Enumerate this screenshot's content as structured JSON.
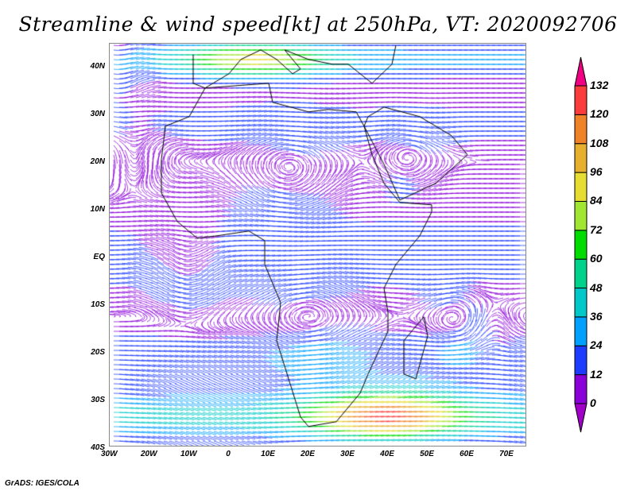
{
  "title": "Streamline & wind speed[kt] at 250hPa, VT: 2020092706",
  "x_axis": [
    "30W",
    "20W",
    "10W",
    "0",
    "10E",
    "20E",
    "30E",
    "40E",
    "50E",
    "60E",
    "70E"
  ],
  "y_axis": [
    "40N",
    "30N",
    "20N",
    "10N",
    "EQ",
    "10S",
    "20S",
    "30S",
    "40S"
  ],
  "colorbar": {
    "labels": [
      "0",
      "12",
      "24",
      "36",
      "48",
      "60",
      "72",
      "84",
      "96",
      "108",
      "120",
      "132"
    ],
    "colors": [
      "#8a00d8",
      "#1e3cff",
      "#00a0ff",
      "#00c8c8",
      "#00d28c",
      "#00dc00",
      "#a0e632",
      "#e6dc32",
      "#e6af2d",
      "#f08228",
      "#fa3c3c",
      "#f00082"
    ],
    "under_color": "#a000c8",
    "over_color": "#f00082"
  },
  "footer": "GrADS: IGES/COLA"
}
